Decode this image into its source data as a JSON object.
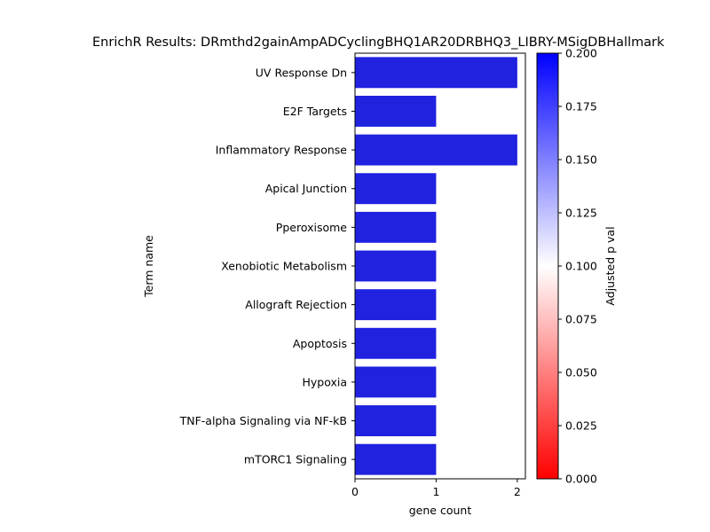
{
  "chart_data": {
    "type": "bar",
    "orientation": "horizontal",
    "title": "EnrichR Results: DRmthd2gainAmpADCyclingBHQ1AR20DRBHQ3_LIBRY-MSigDBHallmark",
    "xlabel": "gene count",
    "ylabel": "Term name",
    "categories": [
      "UV Response Dn",
      "E2F Targets",
      "Inflammatory Response",
      "Apical Junction",
      "Pperoxisome",
      "Xenobiotic Metabolism",
      "Allograft Rejection",
      "Apoptosis",
      "Hypoxia",
      "TNF-alpha Signaling via NF-kB",
      "mTORC1 Signaling"
    ],
    "values": [
      2,
      1,
      2,
      1,
      1,
      1,
      1,
      1,
      1,
      1,
      1
    ],
    "xlim": [
      0,
      2.1
    ],
    "xticks": [
      0,
      1,
      2
    ],
    "bar_color": "#2121e0",
    "colorbar": {
      "label": "Adjusted p val",
      "range": [
        0.0,
        0.2
      ],
      "ticks": [
        "0.000",
        "0.025",
        "0.050",
        "0.075",
        "0.100",
        "0.125",
        "0.150",
        "0.175",
        "0.200"
      ],
      "colors": [
        "#ff0000",
        "#ffffff",
        "#0000ff"
      ]
    }
  }
}
